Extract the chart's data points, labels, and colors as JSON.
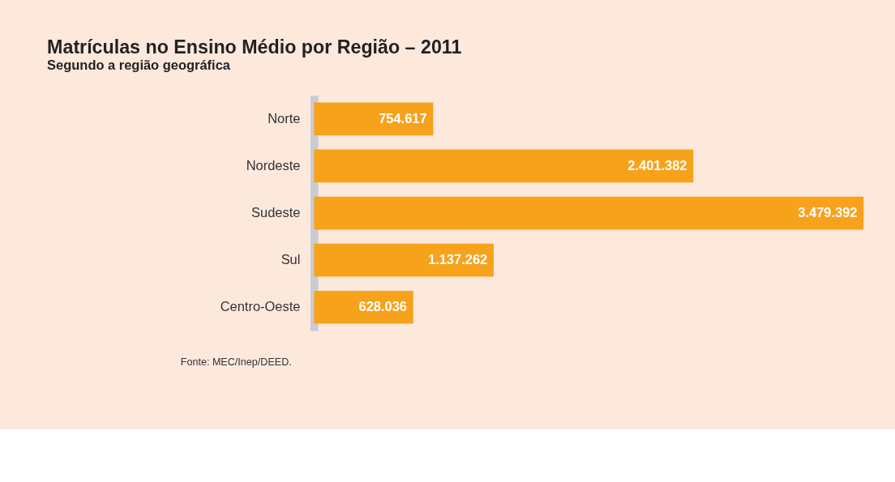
{
  "chart_data": {
    "type": "bar",
    "orientation": "horizontal",
    "title": "Matrículas no Ensino Médio por Região – 2011",
    "subtitle": "Segundo a região geográfica",
    "categories": [
      "Norte",
      "Nordeste",
      "Sudeste",
      "Sul",
      "Centro-Oeste"
    ],
    "values": [
      754617,
      2401382,
      3479392,
      1137262,
      628036
    ],
    "value_labels": [
      "754.617",
      "2.401.382",
      "3.479.392",
      "1.137.262",
      "628.036"
    ],
    "color": "#f7a21b",
    "annotations": [
      "Fonte: MEC/Inep/DEED."
    ],
    "grid": false
  }
}
